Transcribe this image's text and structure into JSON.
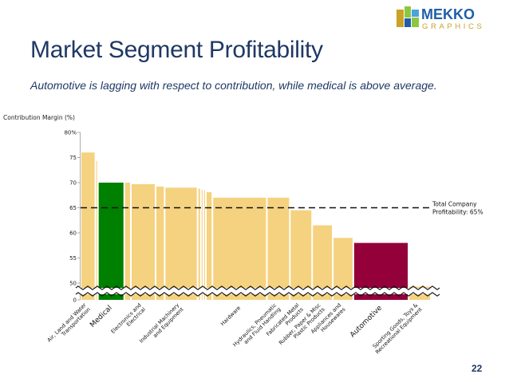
{
  "logo": {
    "word1": "MEKKO",
    "word2": "GRAPHICS"
  },
  "slide": {
    "title": "Market Segment Profitability",
    "subtitle": "Automotive is lagging with respect to contribution, while medical is above average.",
    "page_number": "22"
  },
  "colors": {
    "default_bar": "#f5d27f",
    "medical": "#008000",
    "automotive": "#93003a",
    "title": "#1f3864",
    "logo_blue": "#1f5fa8",
    "logo_gold": "#c9a227"
  },
  "chart_data": {
    "type": "bar",
    "variable_width": true,
    "ylabel": "Contribution Margin (%)",
    "ylim": [
      0,
      80
    ],
    "y_axis_break": [
      0,
      47
    ],
    "yticks": [
      "0",
      "50",
      "55",
      "60",
      "65",
      "70",
      "75",
      "80%"
    ],
    "grid": false,
    "reference_line": {
      "value": 65,
      "label_lines": [
        "Total Company",
        "Profitability: 65%"
      ]
    },
    "bars": [
      {
        "label": "Air, Land and Water Transportation",
        "value": 76,
        "width": 18,
        "highlight": ""
      },
      {
        "label": "",
        "value": 74.3,
        "width": 3,
        "highlight": ""
      },
      {
        "label": "Medical",
        "value": 70,
        "width": 32,
        "highlight": "medical"
      },
      {
        "label": "",
        "value": 70,
        "width": 8,
        "highlight": ""
      },
      {
        "label": "Electronics and Electrical",
        "value": 69.7,
        "width": 30,
        "highlight": ""
      },
      {
        "label": "",
        "value": 69.2,
        "width": 11,
        "highlight": ""
      },
      {
        "label": "Industrial Machinery and Equipment",
        "value": 69,
        "width": 40,
        "highlight": ""
      },
      {
        "label": "",
        "value": 68.8,
        "width": 4,
        "highlight": ""
      },
      {
        "label": "",
        "value": 68.6,
        "width": 3,
        "highlight": ""
      },
      {
        "label": "",
        "value": 68.4,
        "width": 3,
        "highlight": ""
      },
      {
        "label": "",
        "value": 68.1,
        "width": 8,
        "highlight": ""
      },
      {
        "label": "Hardware",
        "value": 67,
        "width": 66,
        "highlight": ""
      },
      {
        "label": "Hydraulics, Pneumatic and Fluid Handling",
        "value": 67,
        "width": 28,
        "highlight": ""
      },
      {
        "label": "Fabricated Metal Products",
        "value": 64.5,
        "width": 27,
        "highlight": ""
      },
      {
        "label": "Rubber, Paper & Misc Plastic Products",
        "value": 61.5,
        "width": 25,
        "highlight": ""
      },
      {
        "label": "Appliances and Housewares",
        "value": 59,
        "width": 25,
        "highlight": ""
      },
      {
        "label": "Automotive",
        "value": 58,
        "width": 67,
        "highlight": "automotive"
      },
      {
        "label": "Sporting Goods, Toys & Recreational Equipment",
        "value": 49.3,
        "width": 27,
        "highlight": ""
      }
    ]
  }
}
